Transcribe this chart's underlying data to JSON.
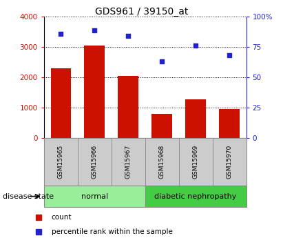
{
  "title": "GDS961 / 39150_at",
  "categories": [
    "GSM15965",
    "GSM15966",
    "GSM15967",
    "GSM15968",
    "GSM15969",
    "GSM15970"
  ],
  "bar_values": [
    2300,
    3050,
    2050,
    800,
    1280,
    950
  ],
  "percentile_values": [
    86,
    89,
    84,
    63,
    76,
    68
  ],
  "bar_color": "#cc1100",
  "percentile_color": "#2222cc",
  "ylim_left": [
    0,
    4000
  ],
  "ylim_right": [
    0,
    100
  ],
  "yticks_left": [
    0,
    1000,
    2000,
    3000,
    4000
  ],
  "yticks_right": [
    0,
    25,
    50,
    75,
    100
  ],
  "ytick_labels_left": [
    "0",
    "1000",
    "2000",
    "3000",
    "4000"
  ],
  "ytick_labels_right": [
    "0",
    "25",
    "50",
    "75",
    "100%"
  ],
  "normal_label": "normal",
  "diabetic_label": "diabetic nephropathy",
  "disease_state_label": "disease state",
  "legend_count": "count",
  "legend_percentile": "percentile rank within the sample",
  "normal_box_color": "#99ee99",
  "diabetic_box_color": "#44cc44",
  "xtick_box_color": "#cccccc",
  "title_fontsize": 10,
  "tick_fontsize": 7.5,
  "label_fontsize": 8
}
